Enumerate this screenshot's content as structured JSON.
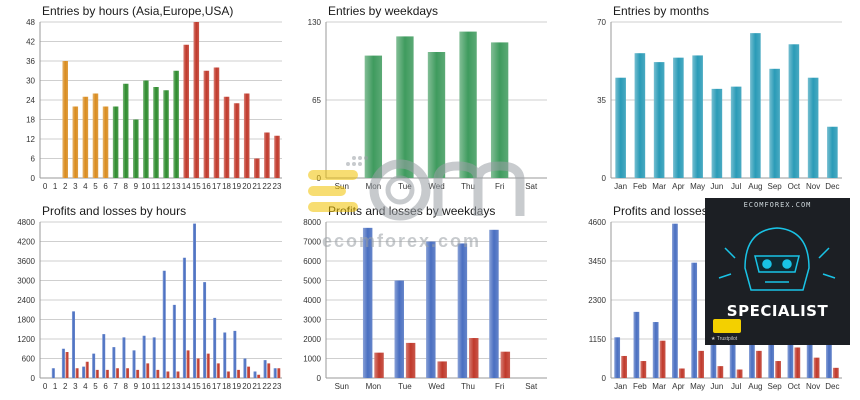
{
  "chart_data": [
    {
      "id": "entries-hours",
      "type": "bar",
      "title": "Entries by hours (Asia,Europe,USA)",
      "categories": [
        "0",
        "1",
        "2",
        "3",
        "4",
        "5",
        "6",
        "7",
        "8",
        "9",
        "10",
        "11",
        "12",
        "13",
        "14",
        "15",
        "16",
        "17",
        "18",
        "19",
        "20",
        "21",
        "22",
        "23"
      ],
      "series": [
        {
          "values": [
            0,
            0,
            36,
            22,
            25,
            26,
            22,
            22,
            29,
            18,
            30,
            28,
            27,
            33,
            41,
            48,
            33,
            34,
            25,
            23,
            26,
            6,
            14,
            13
          ]
        }
      ],
      "yticks": [
        0,
        6,
        12,
        18,
        24,
        30,
        36,
        42,
        48
      ],
      "ylim": [
        0,
        48
      ],
      "colors": [
        "#d98c1f",
        "#d98c1f",
        "#d98c1f",
        "#d98c1f",
        "#d98c1f",
        "#d98c1f",
        "#d98c1f",
        "#2e8b2e",
        "#2e8b2e",
        "#2e8b2e",
        "#2e8b2e",
        "#2e8b2e",
        "#2e8b2e",
        "#2e8b2e",
        "#c0392b",
        "#c0392b",
        "#c0392b",
        "#c0392b",
        "#c0392b",
        "#c0392b",
        "#c0392b",
        "#c0392b",
        "#c0392b",
        "#c0392b"
      ],
      "colors_note": "per-bar color by session"
    },
    {
      "id": "entries-weekdays",
      "type": "bar",
      "title": "Entries by weekdays",
      "categories": [
        "Sun",
        "Mon",
        "Tue",
        "Wed",
        "Thu",
        "Fri",
        "Sat"
      ],
      "series": [
        {
          "values": [
            0,
            102,
            118,
            105,
            122,
            113,
            0
          ]
        }
      ],
      "yticks": [
        0,
        65,
        130
      ],
      "ylim": [
        0,
        130
      ],
      "color": "#3f9b5e"
    },
    {
      "id": "entries-months",
      "type": "bar",
      "title": "Entries by months",
      "categories": [
        "Jan",
        "Feb",
        "Mar",
        "Apr",
        "May",
        "Jun",
        "Jul",
        "Aug",
        "Sep",
        "Oct",
        "Nov",
        "Dec"
      ],
      "series": [
        {
          "values": [
            45,
            56,
            52,
            54,
            55,
            40,
            41,
            65,
            49,
            60,
            45,
            23
          ]
        }
      ],
      "yticks": [
        0,
        35,
        70
      ],
      "ylim": [
        0,
        70
      ],
      "color": "#2a9bb7"
    },
    {
      "id": "pl-hours",
      "type": "bar",
      "title": "Profits and losses by hours",
      "categories": [
        "0",
        "1",
        "2",
        "3",
        "4",
        "5",
        "6",
        "7",
        "8",
        "9",
        "10",
        "11",
        "12",
        "13",
        "14",
        "15",
        "16",
        "17",
        "18",
        "19",
        "20",
        "21",
        "22",
        "23"
      ],
      "series": [
        {
          "values": [
            0,
            300,
            900,
            2050,
            350,
            750,
            1350,
            950,
            1250,
            850,
            1300,
            1250,
            3300,
            2250,
            3700,
            4750,
            2950,
            1850,
            1400,
            1450,
            600,
            200,
            550,
            300
          ]
        },
        {
          "values": [
            0,
            0,
            800,
            300,
            500,
            250,
            250,
            300,
            300,
            250,
            450,
            250,
            200,
            200,
            850,
            600,
            750,
            450,
            200,
            250,
            350,
            100,
            450,
            300
          ]
        }
      ],
      "yticks": [
        0,
        600,
        1200,
        1800,
        2400,
        3000,
        3600,
        4200,
        4800
      ],
      "ylim": [
        0,
        4800
      ],
      "colors": [
        "#4a6fc1",
        "#c0392b"
      ]
    },
    {
      "id": "pl-weekdays",
      "type": "bar",
      "title": "Profits and losses by weekdays",
      "categories": [
        "Sun",
        "Mon",
        "Tue",
        "Wed",
        "Thu",
        "Fri",
        "Sat"
      ],
      "series": [
        {
          "values": [
            0,
            7700,
            5000,
            7000,
            6900,
            7600,
            0
          ]
        },
        {
          "values": [
            0,
            1300,
            1800,
            850,
            2050,
            1350,
            0
          ]
        }
      ],
      "yticks": [
        0,
        1000,
        2000,
        3000,
        4000,
        5000,
        6000,
        7000,
        8000
      ],
      "ylim": [
        0,
        8000
      ],
      "colors": [
        "#4a6fc1",
        "#c0392b"
      ]
    },
    {
      "id": "pl-months",
      "type": "bar",
      "title": "Profits and losses",
      "categories": [
        "Jan",
        "Feb",
        "Mar",
        "Apr",
        "May",
        "Jun",
        "Jul",
        "Aug",
        "Sep",
        "Oct",
        "Nov",
        "Dec"
      ],
      "series": [
        {
          "values": [
            1200,
            1950,
            1650,
            4550,
            3400,
            1000,
            1000,
            1000,
            1000,
            1000,
            1000,
            1000
          ]
        },
        {
          "values": [
            650,
            500,
            1100,
            280,
            800,
            350,
            250,
            800,
            500,
            900,
            600,
            300
          ]
        }
      ],
      "yticks": [
        0,
        1150,
        2300,
        3450,
        4600
      ],
      "ylim": [
        0,
        4600
      ],
      "colors": [
        "#4a6fc1",
        "#c0392b"
      ]
    }
  ],
  "watermark": {
    "url_text": "ecomforex.com"
  },
  "promo": {
    "site": "ECOMFOREX.COM",
    "headline": "SPECIALIST",
    "footer": "★ Trustpilot"
  },
  "icons": {
    "robot": "robot-head-icon",
    "logo": "ecom-logo-icon"
  }
}
